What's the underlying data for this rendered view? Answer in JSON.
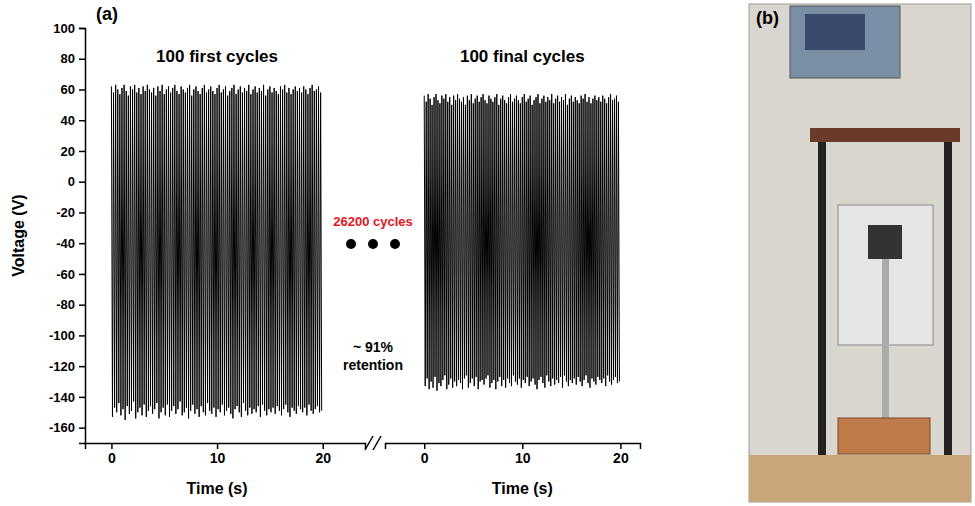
{
  "panel_labels": [
    "(a)",
    "(b)"
  ],
  "chart_data": [
    {
      "type": "line",
      "title": "100 first cycles",
      "x_label": "Time (s)",
      "y_label": "Voltage (V)",
      "color": "#000000",
      "xlim": [
        -2.5,
        24
      ],
      "xticks": [
        0,
        10,
        20
      ],
      "ylim": [
        -170,
        100
      ],
      "yticks": [
        -160,
        -140,
        -120,
        -100,
        -80,
        -60,
        -40,
        -20,
        0,
        20,
        40,
        60,
        80,
        100
      ],
      "annotations": [
        {
          "text": "26200 cycles",
          "color": "#e8141e"
        },
        {
          "lines": [
            "~ 91%",
            "retention"
          ]
        }
      ],
      "x": [
        0,
        0.1,
        0.2,
        0.3,
        0.4,
        0.5,
        0.6,
        0.7,
        0.8,
        0.9,
        1,
        1.1,
        1.2,
        1.3,
        1.4,
        1.5,
        1.6,
        1.7,
        1.8,
        1.9,
        2,
        2.1,
        2.2,
        2.3,
        2.4,
        2.5,
        2.6,
        2.7,
        2.8,
        2.9,
        3,
        3.1,
        3.2,
        3.3,
        3.4,
        3.5,
        3.6,
        3.7,
        3.8,
        3.9,
        4,
        4.1,
        4.2,
        4.3,
        4.4,
        4.5,
        4.6,
        4.7,
        4.8,
        4.9,
        5,
        5.1,
        5.2,
        5.3,
        5.4,
        5.5,
        5.6,
        5.7,
        5.8,
        5.9,
        6,
        6.1,
        6.2,
        6.3,
        6.4,
        6.5,
        6.6,
        6.7,
        6.8,
        6.9,
        7,
        7.1,
        7.2,
        7.3,
        7.4,
        7.5,
        7.6,
        7.7,
        7.8,
        7.9,
        8,
        8.1,
        8.2,
        8.3,
        8.4,
        8.5,
        8.6,
        8.7,
        8.8,
        8.9,
        9,
        9.1,
        9.2,
        9.3,
        9.4,
        9.5,
        9.6,
        9.7,
        9.8,
        9.9,
        10,
        10.1,
        10.2,
        10.3,
        10.4,
        10.5,
        10.6,
        10.7,
        10.8,
        10.9,
        11,
        11.1,
        11.2,
        11.3,
        11.4,
        11.5,
        11.6,
        11.7,
        11.8,
        11.9,
        12,
        12.1,
        12.2,
        12.3,
        12.4,
        12.5,
        12.6,
        12.7,
        12.8,
        12.9,
        13,
        13.1,
        13.2,
        13.3,
        13.4,
        13.5,
        13.6,
        13.7,
        13.8,
        13.9,
        14,
        14.1,
        14.2,
        14.3,
        14.4,
        14.5,
        14.6,
        14.7,
        14.8,
        14.9,
        15,
        15.1,
        15.2,
        15.3,
        15.4,
        15.5,
        15.6,
        15.7,
        15.8,
        15.9,
        16,
        16.1,
        16.2,
        16.3,
        16.4,
        16.5,
        16.6,
        16.7,
        16.8,
        16.9,
        17,
        17.1,
        17.2,
        17.3,
        17.4,
        17.5,
        17.6,
        17.7,
        17.8,
        17.9,
        18,
        18.1,
        18.2,
        18.3,
        18.4,
        18.5,
        18.6,
        18.7,
        18.8,
        18.9,
        19,
        19.1,
        19.2,
        19.3,
        19.4,
        19.5,
        19.6,
        19.7,
        19.8,
        19.9
      ],
      "values": [
        62,
        -153,
        58,
        -147,
        63,
        -150,
        60,
        -144,
        57,
        -152,
        61,
        -148,
        63,
        -155,
        59,
        -146,
        56,
        -151,
        62,
        -149,
        60,
        -143,
        63,
        -154,
        58,
        -150,
        61,
        -147,
        57,
        -152,
        62,
        -145,
        59,
        -153,
        63,
        -149,
        60,
        -146,
        58,
        -151,
        61,
        -148,
        56,
        -144,
        62,
        -154,
        59,
        -150,
        63,
        -147,
        57,
        -152,
        60,
        -145,
        62,
        -153,
        58,
        -149,
        61,
        -146,
        63,
        -151,
        59,
        -148,
        57,
        -143,
        62,
        -152,
        60,
        -150,
        58,
        -147,
        61,
        -154,
        63,
        -149,
        56,
        -145,
        60,
        -151,
        62,
        -148,
        59,
        -153,
        57,
        -146,
        61,
        -150,
        63,
        -152,
        58,
        -144,
        60,
        -149,
        62,
        -151,
        59,
        -147,
        57,
        -153,
        61,
        -148,
        63,
        -150,
        58,
        -145,
        60,
        -152,
        62,
        -149,
        56,
        -147,
        59,
        -151,
        61,
        -154,
        63,
        -148,
        57,
        -146,
        60,
        -150,
        62,
        -153,
        58,
        -144,
        61,
        -149,
        59,
        -152,
        63,
        -147,
        57,
        -151,
        60,
        -148,
        62,
        -150,
        58,
        -146,
        61,
        -153,
        59,
        -145,
        63,
        -149,
        56,
        -152,
        60,
        -148,
        62,
        -150,
        58,
        -147,
        61,
        -151,
        59,
        -146,
        57,
        -149,
        62,
        -152,
        60,
        -148,
        63,
        -145,
        58,
        -150,
        61,
        -153,
        57,
        -147,
        60,
        -149,
        62,
        -151,
        59,
        -146,
        61,
        -148,
        58,
        -150,
        62,
        -147,
        60,
        -152,
        57,
        -145,
        61,
        -149,
        63,
        -151,
        59,
        -148,
        60,
        -146,
        62,
        -150,
        58,
        -149
      ]
    },
    {
      "type": "line",
      "title": "100 final cycles",
      "x_label": "Time (s)",
      "color": "#000000",
      "tick_labels": "x",
      "xlim": [
        -4,
        22
      ],
      "xticks": [
        0,
        10,
        20
      ],
      "ylim": [
        -170,
        100
      ],
      "x": [
        0,
        0.1,
        0.2,
        0.3,
        0.4,
        0.5,
        0.6,
        0.7,
        0.8,
        0.9,
        1,
        1.1,
        1.2,
        1.3,
        1.4,
        1.5,
        1.6,
        1.7,
        1.8,
        1.9,
        2,
        2.1,
        2.2,
        2.3,
        2.4,
        2.5,
        2.6,
        2.7,
        2.8,
        2.9,
        3,
        3.1,
        3.2,
        3.3,
        3.4,
        3.5,
        3.6,
        3.7,
        3.8,
        3.9,
        4,
        4.1,
        4.2,
        4.3,
        4.4,
        4.5,
        4.6,
        4.7,
        4.8,
        4.9,
        5,
        5.1,
        5.2,
        5.3,
        5.4,
        5.5,
        5.6,
        5.7,
        5.8,
        5.9,
        6,
        6.1,
        6.2,
        6.3,
        6.4,
        6.5,
        6.6,
        6.7,
        6.8,
        6.9,
        7,
        7.1,
        7.2,
        7.3,
        7.4,
        7.5,
        7.6,
        7.7,
        7.8,
        7.9,
        8,
        8.1,
        8.2,
        8.3,
        8.4,
        8.5,
        8.6,
        8.7,
        8.8,
        8.9,
        9,
        9.1,
        9.2,
        9.3,
        9.4,
        9.5,
        9.6,
        9.7,
        9.8,
        9.9,
        10,
        10.1,
        10.2,
        10.3,
        10.4,
        10.5,
        10.6,
        10.7,
        10.8,
        10.9,
        11,
        11.1,
        11.2,
        11.3,
        11.4,
        11.5,
        11.6,
        11.7,
        11.8,
        11.9,
        12,
        12.1,
        12.2,
        12.3,
        12.4,
        12.5,
        12.6,
        12.7,
        12.8,
        12.9,
        13,
        13.1,
        13.2,
        13.3,
        13.4,
        13.5,
        13.6,
        13.7,
        13.8,
        13.9,
        14,
        14.1,
        14.2,
        14.3,
        14.4,
        14.5,
        14.6,
        14.7,
        14.8,
        14.9,
        15,
        15.1,
        15.2,
        15.3,
        15.4,
        15.5,
        15.6,
        15.7,
        15.8,
        15.9,
        16,
        16.1,
        16.2,
        16.3,
        16.4,
        16.5,
        16.6,
        16.7,
        16.8,
        16.9,
        17,
        17.1,
        17.2,
        17.3,
        17.4,
        17.5,
        17.6,
        17.7,
        17.8,
        17.9,
        18,
        18.1,
        18.2,
        18.3,
        18.4,
        18.5,
        18.6,
        18.7,
        18.8,
        18.9,
        19,
        19.1,
        19.2,
        19.3,
        19.4,
        19.5,
        19.6,
        19.7,
        19.8,
        19.9
      ],
      "values": [
        56,
        -133,
        52,
        -128,
        57,
        -135,
        54,
        -130,
        50,
        -134,
        55,
        -127,
        57,
        -136,
        53,
        -131,
        51,
        -133,
        56,
        -129,
        54,
        -126,
        57,
        -135,
        52,
        -132,
        55,
        -128,
        50,
        -134,
        56,
        -130,
        53,
        -133,
        57,
        -129,
        54,
        -131,
        52,
        -135,
        55,
        -128,
        50,
        -126,
        56,
        -134,
        53,
        -131,
        57,
        -128,
        51,
        -133,
        54,
        -127,
        56,
        -135,
        52,
        -130,
        55,
        -129,
        57,
        -132,
        53,
        -128,
        51,
        -126,
        56,
        -134,
        54,
        -131,
        52,
        -129,
        55,
        -135,
        57,
        -130,
        50,
        -127,
        54,
        -133,
        56,
        -129,
        53,
        -134,
        51,
        -128,
        55,
        -131,
        57,
        -133,
        52,
        -126,
        54,
        -130,
        56,
        -132,
        53,
        -128,
        51,
        -134,
        55,
        -129,
        57,
        -131,
        52,
        -127,
        54,
        -133,
        56,
        -130,
        50,
        -128,
        53,
        -132,
        55,
        -135,
        57,
        -129,
        51,
        -127,
        54,
        -131,
        56,
        -134,
        52,
        -126,
        55,
        -130,
        53,
        -133,
        57,
        -128,
        51,
        -132,
        54,
        -129,
        56,
        -131,
        52,
        -127,
        55,
        -134,
        53,
        -126,
        57,
        -130,
        50,
        -133,
        54,
        -129,
        56,
        -131,
        52,
        -128,
        55,
        -132,
        53,
        -127,
        51,
        -130,
        56,
        -133,
        54,
        -129,
        57,
        -126,
        52,
        -131,
        55,
        -134,
        51,
        -128,
        54,
        -130,
        56,
        -132,
        53,
        -127,
        55,
        -129,
        52,
        -131,
        56,
        -128,
        54,
        -133,
        51,
        -126,
        55,
        -130,
        57,
        -132,
        53,
        -129,
        54,
        -127,
        56,
        -131,
        52,
        -130
      ]
    }
  ]
}
